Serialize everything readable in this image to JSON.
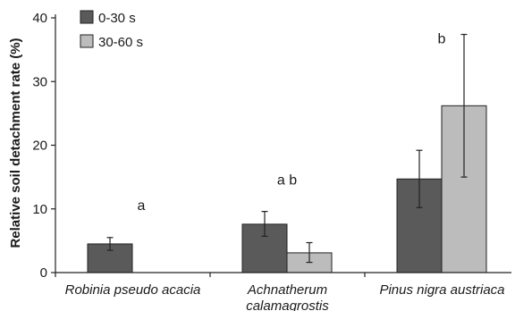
{
  "chart_data": {
    "type": "bar",
    "title": "",
    "xlabel": "",
    "ylabel": "Relative soil detachment rate (%)",
    "ylim": [
      0,
      40
    ],
    "yticks": [
      0,
      10,
      20,
      30,
      40
    ],
    "grid": false,
    "legend_position": "top-left",
    "categories": [
      {
        "lines": [
          "Robinia pseudo acacia"
        ]
      },
      {
        "lines": [
          "Achnatherum",
          "calamagrostis"
        ]
      },
      {
        "lines": [
          "Pinus nigra austriaca"
        ]
      }
    ],
    "series": [
      {
        "name": "0-30 s",
        "color": "#5a5a5a",
        "values": [
          4.5,
          7.6,
          14.7
        ],
        "err_low": [
          3.5,
          5.7,
          10.2
        ],
        "err_high": [
          5.5,
          9.6,
          19.2
        ]
      },
      {
        "name": "30-60 s",
        "color": "#bcbcbc",
        "values": [
          null,
          3.1,
          26.2
        ],
        "err_low": [
          null,
          1.6,
          15.0
        ],
        "err_high": [
          null,
          4.7,
          37.4
        ]
      }
    ],
    "annotations": [
      {
        "text": "a",
        "category": 0,
        "y": 9.8
      },
      {
        "text": "a b",
        "category": 1,
        "y": 13.8
      },
      {
        "text": "b",
        "category": 2,
        "y": 36.0
      }
    ]
  }
}
